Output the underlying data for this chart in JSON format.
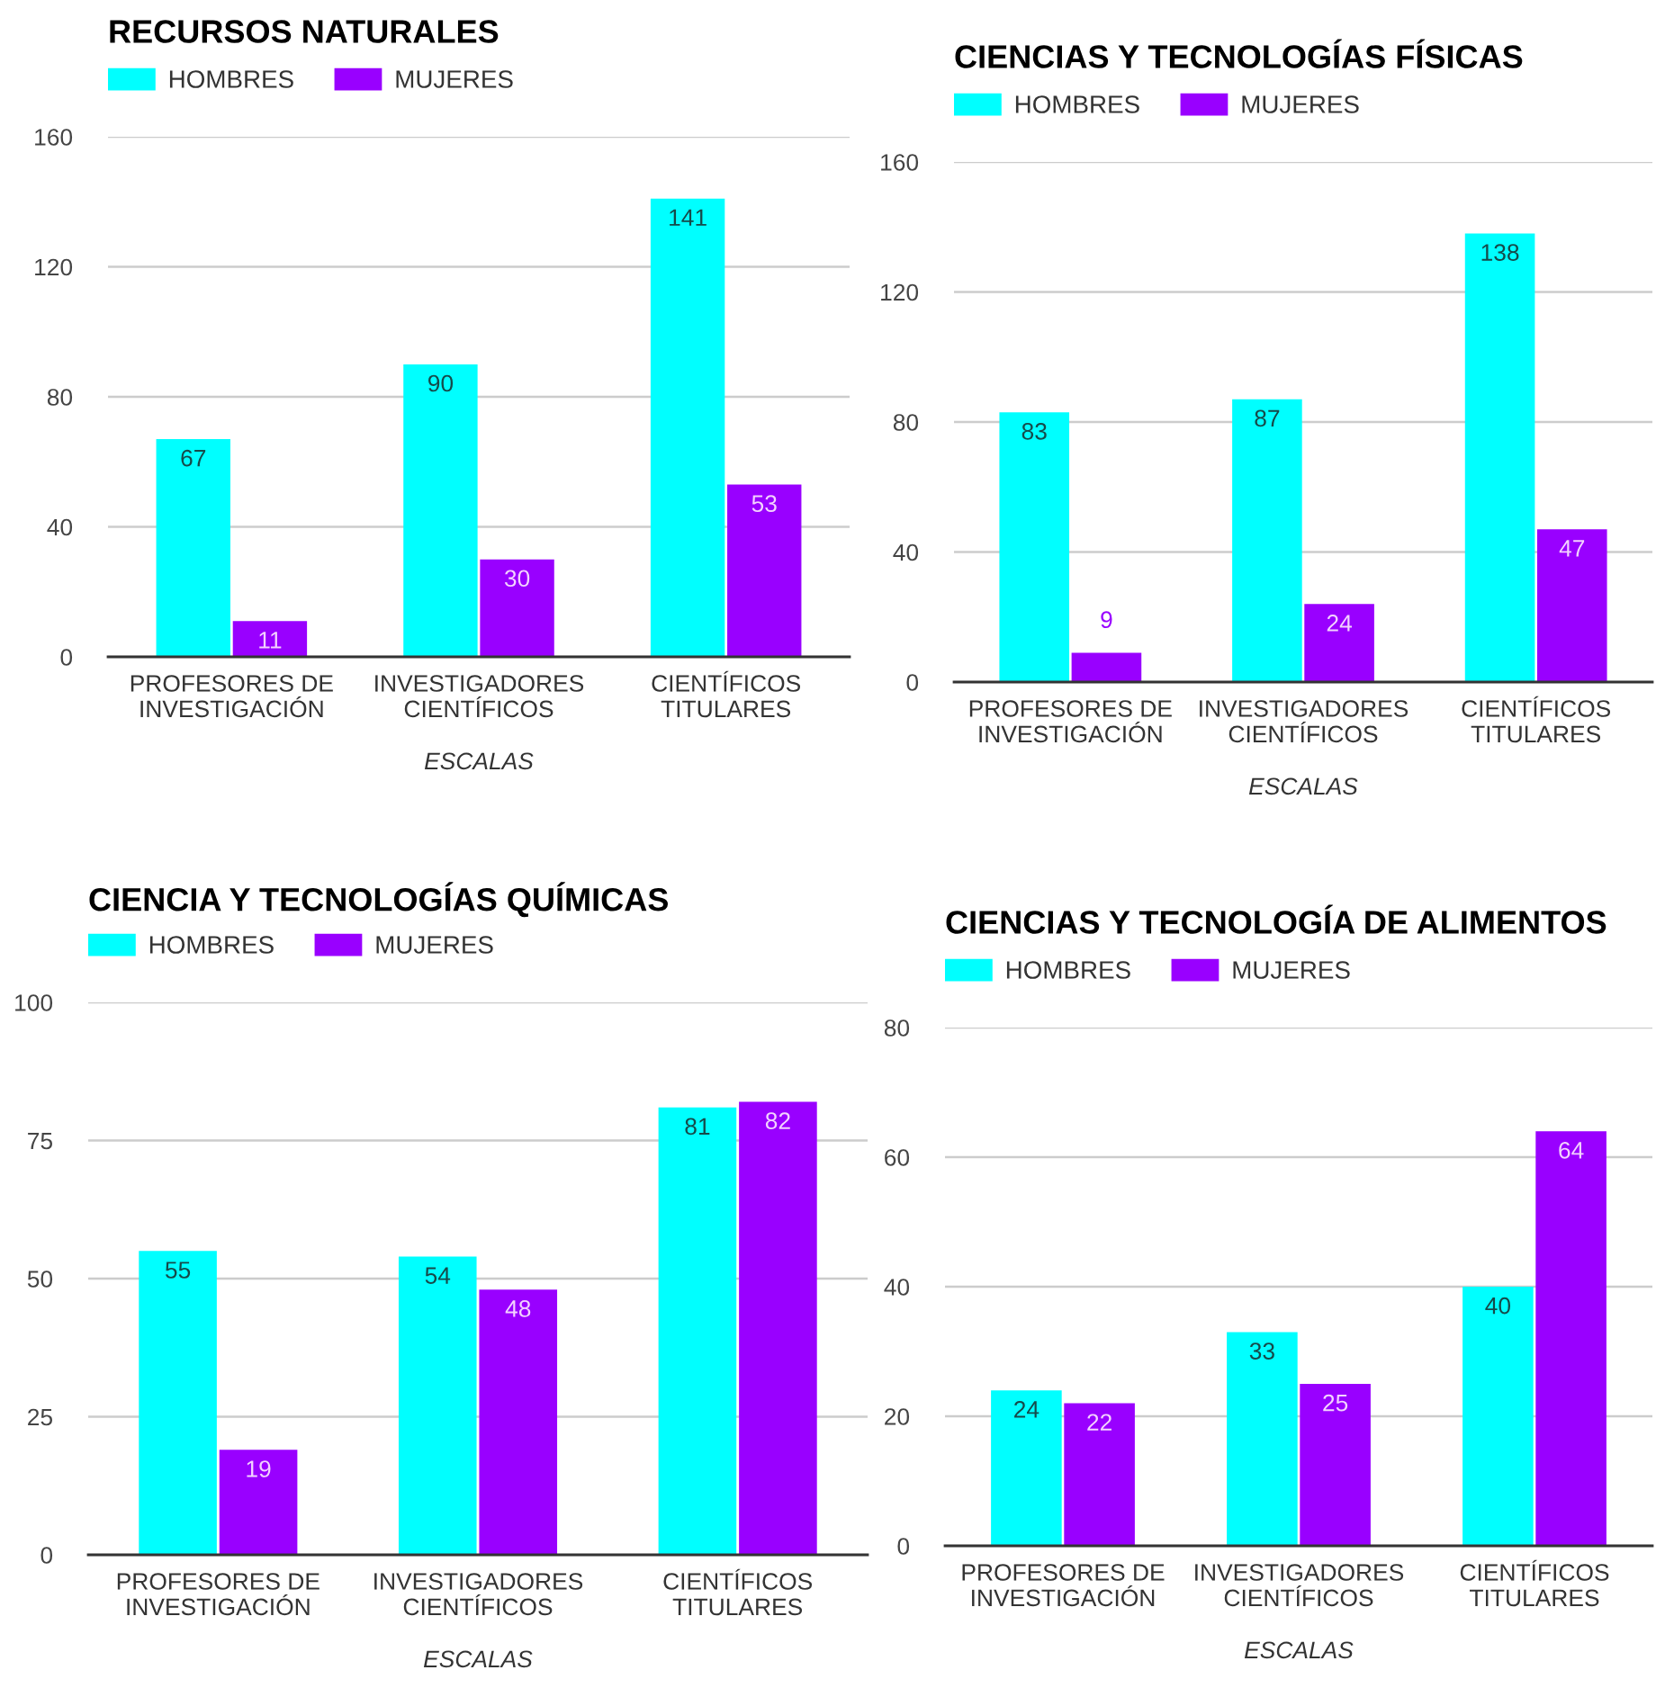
{
  "chart_data": [
    {
      "type": "bar",
      "title": "RECURSOS NATURALES",
      "xlabel": "ESCALAS",
      "categories": [
        "PROFESORES DE\nINVESTIGACIÓN",
        "INVESTIGADORES\nCIENTÍFICOS",
        "CIENTÍFICOS\nTITULARES"
      ],
      "series": [
        {
          "name": "HOMBRES",
          "color": "#00ffff",
          "values": [
            67,
            90,
            141
          ]
        },
        {
          "name": "MUJERES",
          "color": "#9900ff",
          "values": [
            11,
            30,
            53
          ]
        }
      ],
      "ylim": [
        0,
        160
      ],
      "yticks": [
        0,
        40,
        80,
        120,
        160
      ],
      "grid": "y",
      "legend": "top left",
      "data_labels": true
    },
    {
      "type": "bar",
      "title": "CIENCIAS Y TECNOLOGÍAS FÍSICAS",
      "xlabel": "ESCALAS",
      "categories": [
        "PROFESORES DE\nINVESTIGACIÓN",
        "INVESTIGADORES\nCIENTÍFICOS",
        "CIENTÍFICOS\nTITULARES"
      ],
      "series": [
        {
          "name": "HOMBRES",
          "color": "#00ffff",
          "values": [
            83,
            87,
            138
          ]
        },
        {
          "name": "MUJERES",
          "color": "#9900ff",
          "values": [
            9,
            24,
            47
          ]
        }
      ],
      "ylim": [
        0,
        160
      ],
      "yticks": [
        0,
        40,
        80,
        120,
        160
      ],
      "grid": "y",
      "legend": "top left",
      "data_labels": true
    },
    {
      "type": "bar",
      "title": "CIENCIA Y TECNOLOGÍAS QUÍMICAS",
      "xlabel": "ESCALAS",
      "categories": [
        "PROFESORES DE\nINVESTIGACIÓN",
        "INVESTIGADORES\nCIENTÍFICOS",
        "CIENTÍFICOS\nTITULARES"
      ],
      "series": [
        {
          "name": "HOMBRES",
          "color": "#00ffff",
          "values": [
            55,
            54,
            81
          ]
        },
        {
          "name": "MUJERES",
          "color": "#9900ff",
          "values": [
            19,
            48,
            82
          ]
        }
      ],
      "ylim": [
        0,
        100
      ],
      "yticks": [
        0,
        25,
        50,
        75,
        100
      ],
      "grid": "y",
      "legend": "top left",
      "data_labels": true
    },
    {
      "type": "bar",
      "title": "CIENCIAS Y TECNOLOGÍA DE ALIMENTOS",
      "xlabel": "ESCALAS",
      "categories": [
        "PROFESORES DE\nINVESTIGACIÓN",
        "INVESTIGADORES\nCIENTÍFICOS",
        "CIENTÍFICOS\nTITULARES"
      ],
      "series": [
        {
          "name": "HOMBRES",
          "color": "#00ffff",
          "values": [
            24,
            33,
            40
          ]
        },
        {
          "name": "MUJERES",
          "color": "#9900ff",
          "values": [
            22,
            25,
            64
          ]
        }
      ],
      "ylim": [
        0,
        80
      ],
      "yticks": [
        0,
        20,
        40,
        60,
        80
      ],
      "grid": "y",
      "legend": "top left",
      "data_labels": true
    }
  ]
}
